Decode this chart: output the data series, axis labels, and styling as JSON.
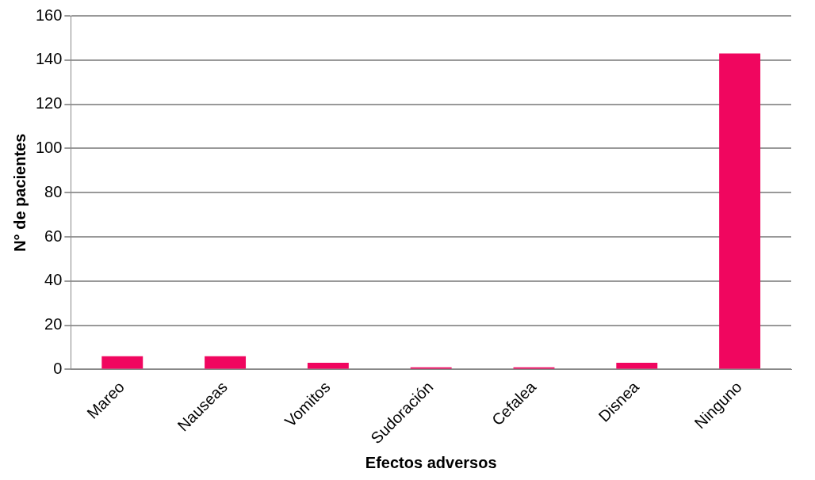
{
  "chart_data": {
    "type": "bar",
    "xlabel": "Efectos adversos",
    "ylabel": "N° de pacientes",
    "categories": [
      "Mareo",
      "Nauseas",
      "Vomitos",
      "Sudoración",
      "Cefalea",
      "Disnea",
      "Ninguno"
    ],
    "values": [
      6,
      6,
      3,
      1,
      1,
      3,
      143
    ],
    "color": "#f0065f",
    "ylim": [
      0,
      160
    ],
    "yticks": [
      0,
      20,
      40,
      60,
      80,
      100,
      120,
      140,
      160
    ],
    "grid": "y"
  }
}
